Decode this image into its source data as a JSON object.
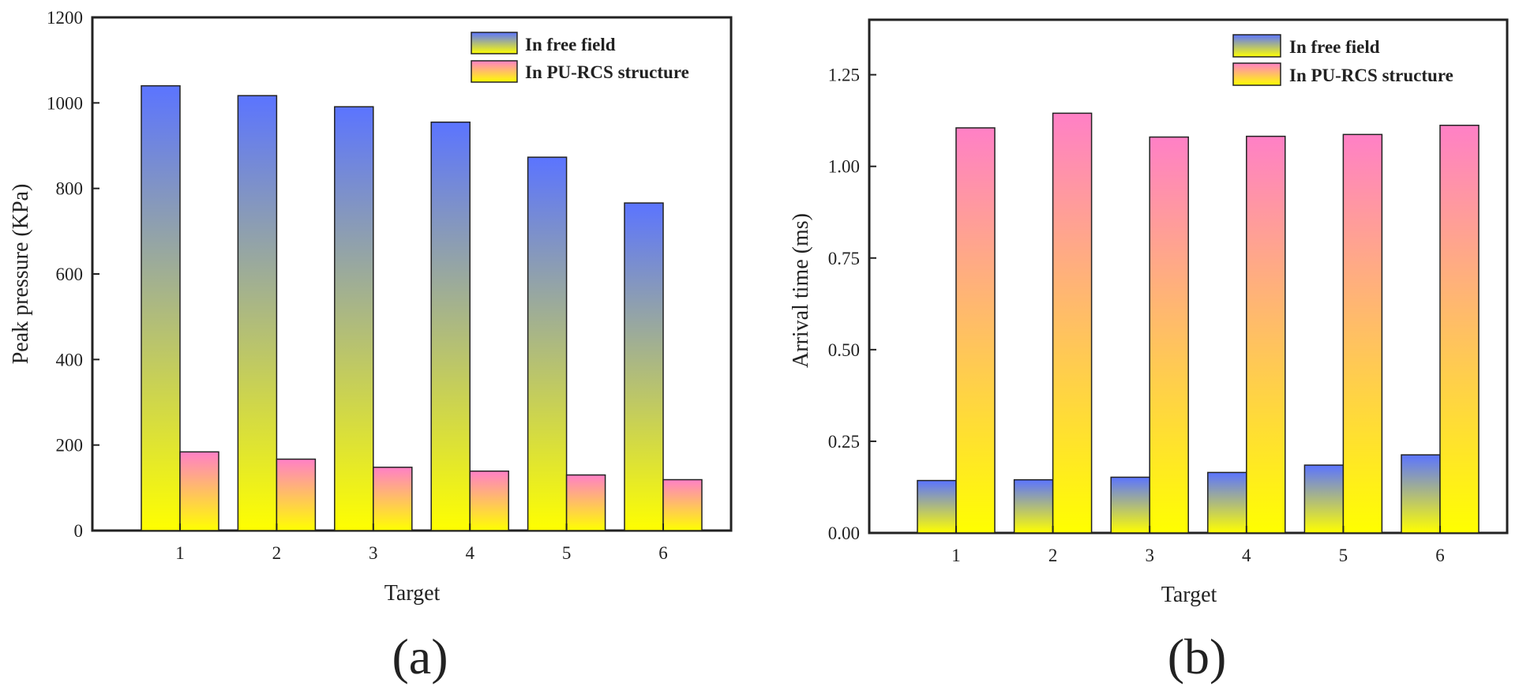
{
  "colors": {
    "free_field_top": "#5b74ff",
    "free_field_bottom": "#ffff00",
    "pu_rcs_top": "#ff80c6",
    "pu_rcs_bottom": "#ffff00",
    "frame": "#222222"
  },
  "chart_data": [
    {
      "type": "bar",
      "panel_label": "(a)",
      "title": "",
      "xlabel": "Target",
      "ylabel": "Peak pressure (KPa)",
      "categories": [
        "1",
        "2",
        "3",
        "4",
        "5",
        "6"
      ],
      "ylim": [
        0,
        1200
      ],
      "yticks": [
        0,
        200,
        400,
        600,
        800,
        1000,
        1200
      ],
      "ytick_labels": [
        "0",
        "200",
        "400",
        "600",
        "800",
        "1000",
        "1200"
      ],
      "grid": false,
      "legend_position": "top-right",
      "series": [
        {
          "name": "In free field",
          "values": [
            1040,
            1017,
            991,
            955,
            873,
            766
          ]
        },
        {
          "name": "In PU-RCS structure",
          "values": [
            184,
            167,
            148,
            139,
            130,
            119
          ]
        }
      ]
    },
    {
      "type": "bar",
      "panel_label": "(b)",
      "title": "",
      "xlabel": "Target",
      "ylabel": "Arrival time (ms)",
      "categories": [
        "1",
        "2",
        "3",
        "4",
        "5",
        "6"
      ],
      "ylim": [
        0,
        1.4
      ],
      "yticks": [
        0,
        0.25,
        0.5,
        0.75,
        1.0,
        1.25
      ],
      "ytick_labels": [
        "0.00",
        "0.25",
        "0.50",
        "0.75",
        "1.00",
        "1.25"
      ],
      "grid": false,
      "legend_position": "top-right",
      "series": [
        {
          "name": "In free field",
          "values": [
            0.143,
            0.145,
            0.152,
            0.165,
            0.185,
            0.213
          ]
        },
        {
          "name": "In PU-RCS structure",
          "values": [
            1.105,
            1.145,
            1.08,
            1.082,
            1.087,
            1.112
          ]
        }
      ]
    }
  ]
}
